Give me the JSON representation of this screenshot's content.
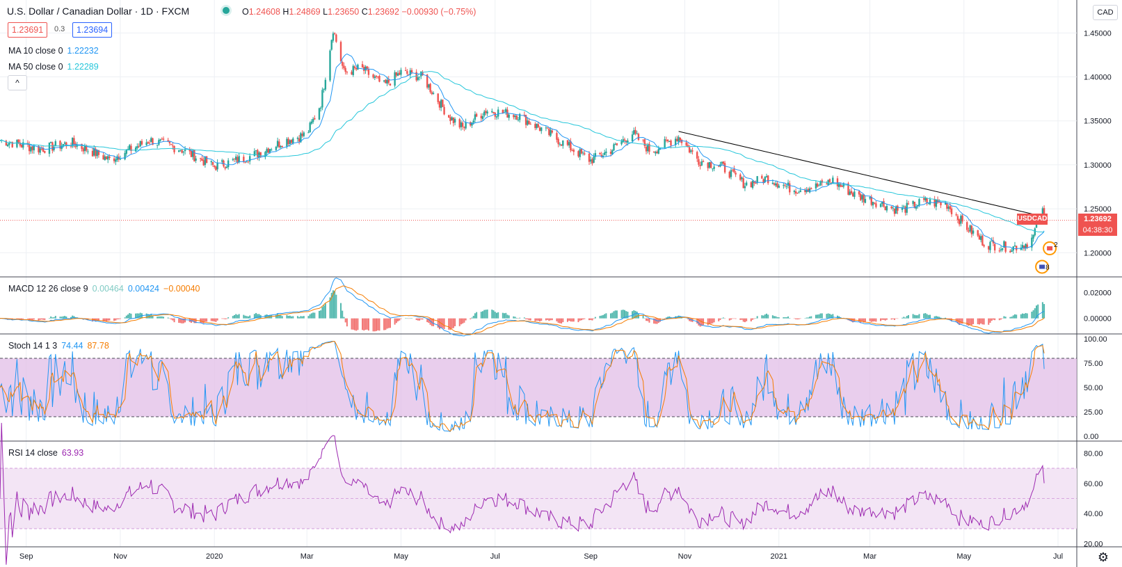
{
  "header": {
    "title": "U.S. Dollar / Canadian Dollar · 1D · FXCM",
    "ohlc": [
      {
        "key": "O",
        "value": "1.24608"
      },
      {
        "key": "H",
        "value": "1.24869"
      },
      {
        "key": "L",
        "value": "1.23650"
      },
      {
        "key": "C",
        "value": "1.23692"
      },
      {
        "key": "",
        "value": "−0.00930 (−0.75%)"
      }
    ],
    "sell_price": "1.23691",
    "spread": "0.3",
    "buy_price": "1.23694",
    "ma10_label": "MA 10 close 0",
    "ma10_value": "1.22232",
    "ma50_label": "MA 50 close 0",
    "ma50_value": "1.22289",
    "collapse_icon": "^",
    "currency_button": "CAD"
  },
  "price_tag": {
    "symbol": "USDCAD",
    "price": "1.23692",
    "countdown": "04:38:30"
  },
  "colors": {
    "up": "#26a69a",
    "down": "#ef5350",
    "ma10": "#2196f3",
    "ma50": "#26c6da",
    "macd_signal": "#f57c00",
    "rsi": "#9c27b0",
    "stoch_band": "#e1bee7",
    "rsi_band": "#f3e5f5",
    "trendline": "#000000"
  },
  "chart_data": [
    {
      "type": "candlestick",
      "title": "U.S. Dollar / Canadian Dollar · 1D · FXCM",
      "x_ticks": [
        "Sep",
        "Nov",
        "2020",
        "Mar",
        "May",
        "Jul",
        "Sep",
        "Nov",
        "2021",
        "Mar",
        "May",
        "Jul"
      ],
      "x_range": [
        "2019-08-15",
        "2021-07-10"
      ],
      "y_ticks": [
        "1.45000",
        "1.40000",
        "1.35000",
        "1.30000",
        "1.25000",
        "1.20000"
      ],
      "ylim": [
        1.1725,
        1.4875
      ],
      "anchors": [
        {
          "date": "2019-08-15",
          "close": 1.328
        },
        {
          "date": "2019-09-10",
          "close": 1.318
        },
        {
          "date": "2019-10-01",
          "close": 1.325
        },
        {
          "date": "2019-10-25",
          "close": 1.306
        },
        {
          "date": "2019-11-20",
          "close": 1.328
        },
        {
          "date": "2019-12-10",
          "close": 1.318
        },
        {
          "date": "2020-01-01",
          "close": 1.298
        },
        {
          "date": "2020-01-25",
          "close": 1.31
        },
        {
          "date": "2020-02-15",
          "close": 1.327
        },
        {
          "date": "2020-03-01",
          "close": 1.335
        },
        {
          "date": "2020-03-10",
          "close": 1.37
        },
        {
          "date": "2020-03-18",
          "close": 1.455
        },
        {
          "date": "2020-03-25",
          "close": 1.405
        },
        {
          "date": "2020-04-05",
          "close": 1.41
        },
        {
          "date": "2020-04-20",
          "close": 1.39
        },
        {
          "date": "2020-05-01",
          "close": 1.405
        },
        {
          "date": "2020-05-15",
          "close": 1.4
        },
        {
          "date": "2020-06-01",
          "close": 1.355
        },
        {
          "date": "2020-06-10",
          "close": 1.342
        },
        {
          "date": "2020-06-25",
          "close": 1.362
        },
        {
          "date": "2020-07-15",
          "close": 1.357
        },
        {
          "date": "2020-08-01",
          "close": 1.34
        },
        {
          "date": "2020-08-20",
          "close": 1.318
        },
        {
          "date": "2020-09-01",
          "close": 1.305
        },
        {
          "date": "2020-09-15",
          "close": 1.318
        },
        {
          "date": "2020-09-28",
          "close": 1.336
        },
        {
          "date": "2020-10-10",
          "close": 1.315
        },
        {
          "date": "2020-10-28",
          "close": 1.332
        },
        {
          "date": "2020-11-10",
          "close": 1.305
        },
        {
          "date": "2020-11-25",
          "close": 1.298
        },
        {
          "date": "2020-12-10",
          "close": 1.278
        },
        {
          "date": "2020-12-25",
          "close": 1.285
        },
        {
          "date": "2021-01-10",
          "close": 1.272
        },
        {
          "date": "2021-01-25",
          "close": 1.275
        },
        {
          "date": "2021-02-05",
          "close": 1.282
        },
        {
          "date": "2021-02-20",
          "close": 1.265
        },
        {
          "date": "2021-03-05",
          "close": 1.258
        },
        {
          "date": "2021-03-20",
          "close": 1.248
        },
        {
          "date": "2021-04-05",
          "close": 1.258
        },
        {
          "date": "2021-04-20",
          "close": 1.255
        },
        {
          "date": "2021-05-01",
          "close": 1.232
        },
        {
          "date": "2021-05-15",
          "close": 1.21
        },
        {
          "date": "2021-06-01",
          "close": 1.206
        },
        {
          "date": "2021-06-10",
          "close": 1.21
        },
        {
          "date": "2021-06-15",
          "close": 1.218
        },
        {
          "date": "2021-06-18",
          "close": 1.24
        },
        {
          "date": "2021-06-21",
          "close": 1.246
        },
        {
          "date": "2021-06-22",
          "close": 1.23692
        }
      ],
      "series": [
        {
          "name": "MA 10 close 0",
          "last": 1.22232
        },
        {
          "name": "MA 50 close 0",
          "last": 1.22289
        }
      ],
      "trendline": [
        {
          "date": "2020-10-28",
          "price": 1.338
        },
        {
          "date": "2021-06-22",
          "price": 1.241
        }
      ],
      "last_price_line": 1.23692,
      "events": [
        {
          "icon": "canada-flag-icon",
          "count": "2"
        },
        {
          "icon": "us-flag-icon",
          "count": "8"
        }
      ]
    },
    {
      "type": "macd",
      "title": "MACD 12 26 close 9",
      "values": {
        "histogram": "0.00464",
        "macd": "0.00424",
        "signal": "−0.00040"
      },
      "y_ticks": [
        "0.02000",
        "0.00000"
      ],
      "ylim": [
        -0.012,
        0.032
      ]
    },
    {
      "type": "stochastic",
      "title": "Stoch 14 1 3",
      "values": {
        "k": "74.44",
        "d": "87.78"
      },
      "y_ticks": [
        "100.00",
        "75.00",
        "50.00",
        "25.00",
        "0.00"
      ],
      "ylim": [
        -5,
        105
      ],
      "band": [
        20,
        80
      ]
    },
    {
      "type": "rsi",
      "title": "RSI 14 close",
      "values": {
        "rsi": "63.93"
      },
      "y_ticks": [
        "80.00",
        "60.00",
        "40.00",
        "20.00"
      ],
      "ylim": [
        18,
        88
      ],
      "band": [
        30,
        70
      ]
    }
  ]
}
